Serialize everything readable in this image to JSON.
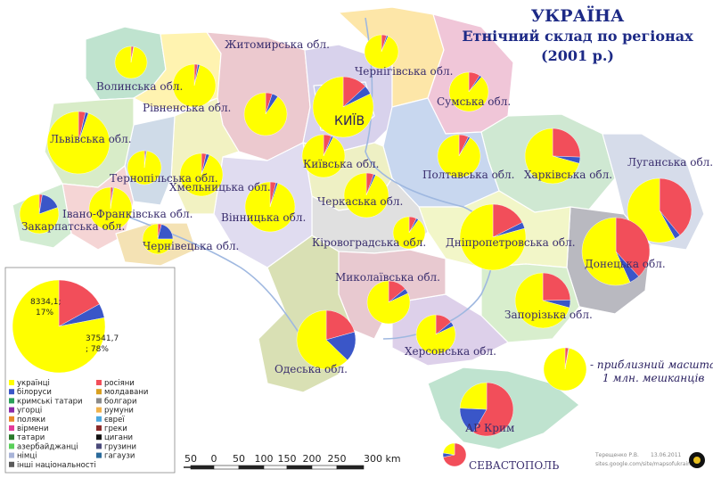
{
  "title": {
    "line1": "УКРАЇНА",
    "line2": "Етнічний склад по регіонах",
    "line3": "(2001 р.)"
  },
  "colors": {
    "ukrainians": "#ffff00",
    "russians": "#f24e5a",
    "other_blue": "#3a56c8",
    "purple": "#8c2aa8",
    "orange": "#e8892a",
    "green": "#2aa05a",
    "dark": "#2a2a2a"
  },
  "regions": [
    {
      "id": "volyn",
      "label": "Волинська обл.",
      "pie": {
        "ua": 97,
        "ru": 2.5,
        "ot": 0.5
      }
    },
    {
      "id": "rivne",
      "label": "Рівненська обл.",
      "pie": {
        "ua": 95.9,
        "ru": 2.6,
        "ot": 1.5
      }
    },
    {
      "id": "zhytomyr",
      "label": "Житомирська обл.",
      "pie": {
        "ua": 90.3,
        "ru": 5,
        "ot": 4.7
      }
    },
    {
      "id": "chernihiv",
      "label": "Чернігівська обл.",
      "pie": {
        "ua": 93.5,
        "ru": 5,
        "ot": 1.5
      }
    },
    {
      "id": "sumy",
      "label": "Сумська обл.",
      "pie": {
        "ua": 88.8,
        "ru": 9.4,
        "ot": 1.8
      }
    },
    {
      "id": "kyiv-city",
      "label": "КИЇВ",
      "pie": {
        "ua": 82.2,
        "ru": 13.1,
        "ot": 4.7
      }
    },
    {
      "id": "lviv",
      "label": "Львівська обл.",
      "pie": {
        "ua": 94.8,
        "ru": 3.6,
        "ot": 1.6
      }
    },
    {
      "id": "ternopil",
      "label": "Тернопільська обл.",
      "pie": {
        "ua": 97.8,
        "ru": 1.2,
        "ot": 1
      }
    },
    {
      "id": "khmelnytskyi",
      "label": "Хмельницька обл.",
      "pie": {
        "ua": 93.9,
        "ru": 3.6,
        "ot": 2.5
      }
    },
    {
      "id": "kyiv-obl",
      "label": "Київська обл.",
      "pie": {
        "ua": 92.5,
        "ru": 6,
        "ot": 1.5
      }
    },
    {
      "id": "poltava",
      "label": "Полтавська обл.",
      "pie": {
        "ua": 91.4,
        "ru": 7.2,
        "ot": 1.4
      }
    },
    {
      "id": "kharkiv",
      "label": "Харківська обл.",
      "pie": {
        "ua": 70.7,
        "ru": 25.6,
        "ot": 3.7
      }
    },
    {
      "id": "luhansk",
      "label": "Луганська обл.",
      "pie": {
        "ua": 58,
        "ru": 39,
        "ot": 3
      }
    },
    {
      "id": "zakarpattia",
      "label": "Закарпатська обл.",
      "pie": {
        "ua": 80.5,
        "ru": 2.5,
        "ot": 17
      }
    },
    {
      "id": "ivano-frankivsk",
      "label": "Івано-Франківська обл.",
      "pie": {
        "ua": 97.5,
        "ru": 1.8,
        "ot": 0.7
      }
    },
    {
      "id": "chernivtsi",
      "label": "Чернівецька обл.",
      "pie": {
        "ua": 75,
        "ru": 4,
        "ot": 21
      }
    },
    {
      "id": "vinnytsia",
      "label": "Вінницька обл.",
      "pie": {
        "ua": 94.9,
        "ru": 3.8,
        "ot": 1.3
      }
    },
    {
      "id": "cherkasy",
      "label": "Черкаська обл.",
      "pie": {
        "ua": 93.1,
        "ru": 5.4,
        "ot": 1.5
      }
    },
    {
      "id": "kirovohrad",
      "label": "Кіровоградська обл.",
      "pie": {
        "ua": 90.1,
        "ru": 7.5,
        "ot": 2.4
      }
    },
    {
      "id": "dnipro",
      "label": "Дніпропетровська обл.",
      "pie": {
        "ua": 79.3,
        "ru": 17.6,
        "ot": 3.1
      }
    },
    {
      "id": "donetsk",
      "label": "Донецька обл.",
      "pie": {
        "ua": 56.9,
        "ru": 38.2,
        "ot": 4.9
      }
    },
    {
      "id": "mykolaiv",
      "label": "Миколаївська обл.",
      "pie": {
        "ua": 81.9,
        "ru": 14.1,
        "ot": 4
      }
    },
    {
      "id": "zaporizhzhia",
      "label": "Запорізька обл.",
      "pie": {
        "ua": 70.8,
        "ru": 24.7,
        "ot": 4.5
      }
    },
    {
      "id": "odesa",
      "label": "Одеська обл.",
      "pie": {
        "ua": 62.8,
        "ru": 20.7,
        "ot": 16.5
      }
    },
    {
      "id": "kherson",
      "label": "Херсонська обл.",
      "pie": {
        "ua": 82,
        "ru": 14.1,
        "ot": 3.9
      }
    },
    {
      "id": "crimea",
      "label": "АР Крим",
      "pie": {
        "ua": 24.3,
        "ru": 58.3,
        "ot": 17.4
      }
    },
    {
      "id": "sevastopol",
      "label": "СЕВАСТОПОЛЬ",
      "pie": {
        "ua": 22.4,
        "ru": 71.6,
        "ot": 6
      }
    }
  ],
  "inset": {
    "value_ru": "8334,1;",
    "pct_ru": "17%",
    "value_ua": "37541,7",
    "pct_ua": "; 78%",
    "pie": {
      "ua": 78,
      "ru": 17,
      "ot": 5
    }
  },
  "legend": {
    "left": [
      {
        "label": "українці",
        "color": "#ffff00"
      },
      {
        "label": "білоруси",
        "color": "#3a56c8"
      },
      {
        "label": "кримські татари",
        "color": "#2aa05a"
      },
      {
        "label": "угорці",
        "color": "#8c2aa8"
      },
      {
        "label": "поляки",
        "color": "#e8892a"
      },
      {
        "label": "вірмени",
        "color": "#e43a9a"
      },
      {
        "label": "татари",
        "color": "#2a7a2a"
      },
      {
        "label": "азербайджанці",
        "color": "#5ad05a"
      },
      {
        "label": "німці",
        "color": "#a8b4d8"
      },
      {
        "label": "інші національності",
        "color": "#5a5a5a"
      }
    ],
    "right": [
      {
        "label": "росіяни",
        "color": "#f24e5a"
      },
      {
        "label": "молдавани",
        "color": "#d8a020"
      },
      {
        "label": "болгари",
        "color": "#8a8a8a"
      },
      {
        "label": "румуни",
        "color": "#f0b24a"
      },
      {
        "label": "євреї",
        "color": "#4aa8e0"
      },
      {
        "label": "греки",
        "color": "#8a2a2a"
      },
      {
        "label": "цигани",
        "color": "#111111"
      },
      {
        "label": "грузини",
        "color": "#4a4a7a"
      },
      {
        "label": "гагаузи",
        "color": "#2a6a9a"
      }
    ]
  },
  "scale": {
    "ticks": [
      "50",
      "0",
      "50",
      "100",
      "150",
      "200",
      "250",
      "300 km"
    ]
  },
  "note": {
    "line1": "- приблизний масштаб",
    "line2": "1 млн. мешканців"
  },
  "credits": {
    "author": "Терещенко Р.В.",
    "date": "13.06.2011",
    "site": "sites.google.com/site/mapsofukraine"
  }
}
